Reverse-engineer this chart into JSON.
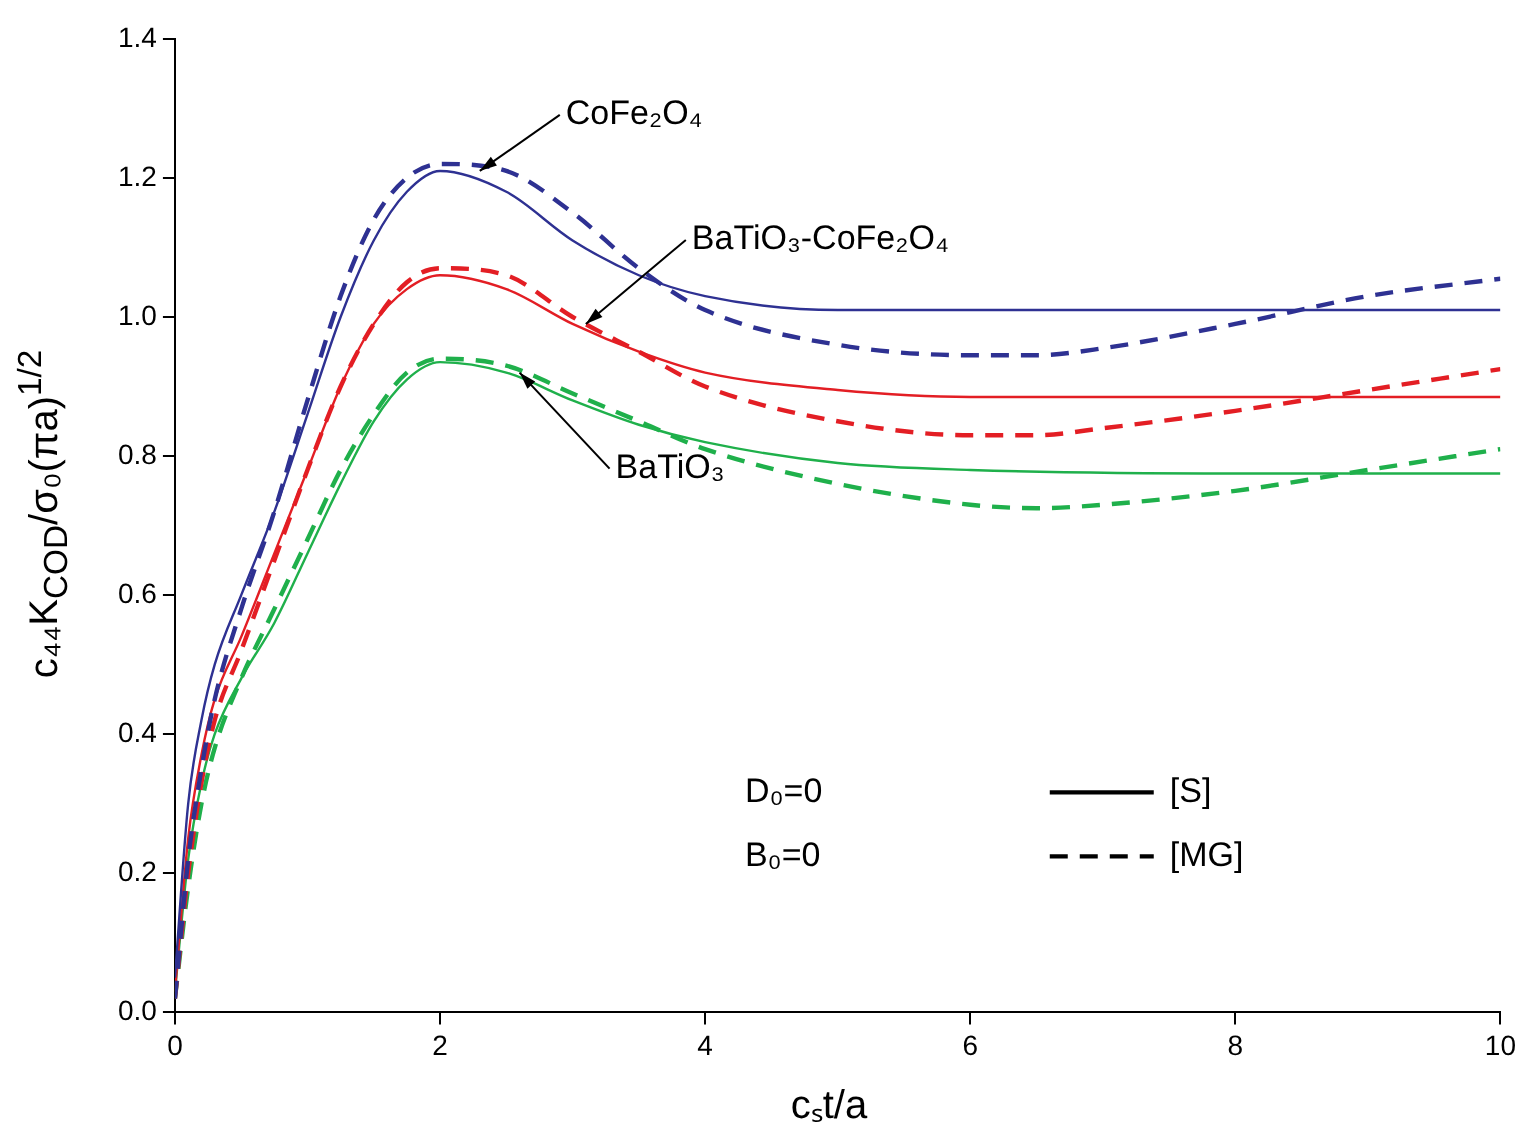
{
  "chart_data": {
    "type": "line",
    "xlabel": "cₛt/a",
    "ylabel": "c₄₄K$_{COD}$/σ₀(πa)$^{1/2}$",
    "xlim": [
      0,
      10
    ],
    "xticks": [
      0,
      2,
      4,
      6,
      8,
      10
    ],
    "ylim": [
      0,
      1.4
    ],
    "yticks": [
      {
        "value": 0,
        "label": "0.0"
      },
      0.2,
      0.4,
      0.6,
      0.8,
      {
        "value": 1,
        "label": "1.0"
      },
      1.2,
      1.4
    ],
    "grid": false,
    "legend": "bottom right",
    "marker": "none",
    "series": [
      {
        "color": "#2e3192",
        "line_style": "solid",
        "x": [
          0,
          0.1,
          0.2,
          0.3,
          0.5,
          0.75,
          1,
          1.25,
          1.5,
          1.75,
          2,
          2.5,
          3,
          3.5,
          4,
          5,
          6,
          8,
          10
        ],
        "values": [
          0.05,
          0.3,
          0.42,
          0.5,
          0.6,
          0.72,
          0.86,
          1.0,
          1.11,
          1.18,
          1.21,
          1.18,
          1.11,
          1.06,
          1.03,
          1.01,
          1.01,
          1.01,
          1.01
        ]
      },
      {
        "color": "#2e3192",
        "line_style": "dashed",
        "x": [
          0,
          0.1,
          0.2,
          0.3,
          0.5,
          0.75,
          1,
          1.25,
          1.5,
          1.75,
          2,
          2.5,
          3,
          3.5,
          4,
          5,
          6,
          6.5,
          7,
          8,
          9,
          10
        ],
        "values": [
          0.02,
          0.22,
          0.35,
          0.45,
          0.58,
          0.72,
          0.88,
          1.03,
          1.14,
          1.2,
          1.22,
          1.21,
          1.15,
          1.07,
          1.01,
          0.96,
          0.945,
          0.945,
          0.955,
          0.99,
          1.03,
          1.055
        ]
      },
      {
        "color": "#e31e24",
        "line_style": "solid",
        "x": [
          0,
          0.1,
          0.2,
          0.3,
          0.5,
          0.75,
          1,
          1.25,
          1.5,
          1.75,
          2,
          2.5,
          3,
          3.5,
          4,
          5,
          6,
          8,
          10
        ],
        "values": [
          0.03,
          0.25,
          0.37,
          0.45,
          0.54,
          0.66,
          0.78,
          0.9,
          0.99,
          1.04,
          1.06,
          1.04,
          0.99,
          0.95,
          0.92,
          0.895,
          0.885,
          0.885,
          0.885
        ]
      },
      {
        "color": "#e31e24",
        "line_style": "dashed",
        "x": [
          0,
          0.1,
          0.2,
          0.3,
          0.5,
          0.75,
          1,
          1.25,
          1.5,
          1.75,
          2,
          2.5,
          3,
          3.5,
          4,
          5,
          6,
          6.5,
          7,
          8,
          9,
          10
        ],
        "values": [
          0.02,
          0.2,
          0.33,
          0.42,
          0.52,
          0.65,
          0.78,
          0.9,
          0.99,
          1.05,
          1.07,
          1.06,
          1.0,
          0.95,
          0.9,
          0.85,
          0.83,
          0.83,
          0.84,
          0.865,
          0.895,
          0.925
        ]
      },
      {
        "color": "#1fb04b",
        "line_style": "solid",
        "x": [
          0,
          0.1,
          0.2,
          0.3,
          0.5,
          0.75,
          1,
          1.25,
          1.5,
          1.75,
          2,
          2.5,
          3,
          3.5,
          4,
          5,
          6,
          8,
          10
        ],
        "values": [
          0.03,
          0.22,
          0.33,
          0.4,
          0.48,
          0.56,
          0.66,
          0.76,
          0.85,
          0.91,
          0.935,
          0.92,
          0.88,
          0.845,
          0.82,
          0.79,
          0.78,
          0.775,
          0.775
        ]
      },
      {
        "color": "#1fb04b",
        "line_style": "dashed",
        "x": [
          0,
          0.1,
          0.2,
          0.3,
          0.5,
          0.75,
          1,
          1.25,
          1.5,
          1.75,
          2,
          2.5,
          3,
          3.5,
          4,
          5,
          6,
          6.5,
          7,
          8,
          9,
          10
        ],
        "values": [
          0.02,
          0.18,
          0.3,
          0.38,
          0.48,
          0.58,
          0.68,
          0.78,
          0.86,
          0.92,
          0.94,
          0.93,
          0.89,
          0.85,
          0.81,
          0.76,
          0.73,
          0.725,
          0.73,
          0.75,
          0.78,
          0.81
        ]
      },
      {
        "name": "[S]",
        "color": "#000000",
        "line_style": "solid"
      },
      {
        "name": "[MG]",
        "color": "#000000",
        "line_style": "dashed"
      }
    ],
    "annotations": [
      {
        "text": "CoFe₂O₄",
        "x": 2.3,
        "y": 1.21
      },
      {
        "text": "BaTiO₃-CoFe₂O₄",
        "x": 3.1,
        "y": 0.99
      },
      {
        "text": "BaTiO₃",
        "x": 2.6,
        "y": 0.92
      },
      "D₀=0",
      "B₀=0"
    ]
  }
}
